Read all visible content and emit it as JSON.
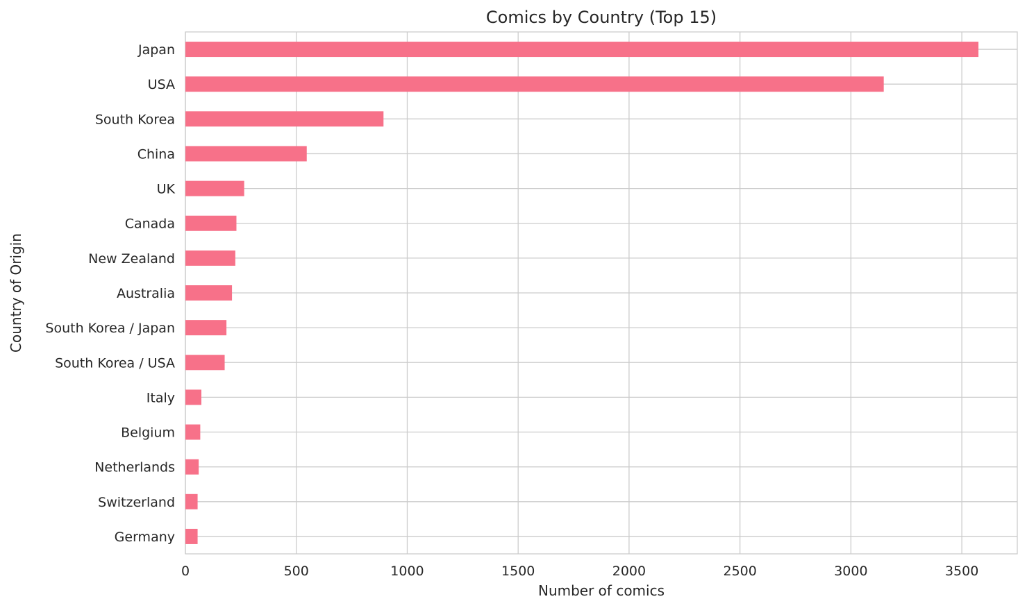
{
  "chart_data": {
    "type": "bar",
    "orientation": "horizontal",
    "title": "Comics by Country (Top 15)",
    "xlabel": "Number of comics",
    "ylabel": "Country of Origin",
    "categories": [
      "Japan",
      "USA",
      "South Korea",
      "China",
      "UK",
      "Canada",
      "New Zealand",
      "Australia",
      "South Korea / Japan",
      "South Korea / USA",
      "Italy",
      "Belgium",
      "Netherlands",
      "Switzerland",
      "Germany"
    ],
    "values": [
      3575,
      3148,
      893,
      547,
      265,
      230,
      225,
      210,
      185,
      177,
      72,
      67,
      60,
      55,
      55
    ],
    "xlim": [
      0,
      3750
    ],
    "xticks": [
      "0",
      "500",
      "1000",
      "1500",
      "2000",
      "2500",
      "3000",
      "3500"
    ],
    "bar_color": "#f77189",
    "grid": true
  }
}
